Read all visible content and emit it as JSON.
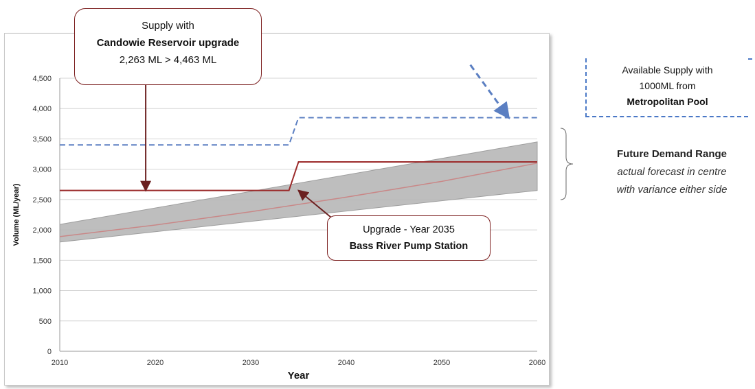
{
  "chart_data": {
    "type": "line",
    "xlabel": "Year",
    "ylabel": "Volume (ML/year)",
    "xlim": [
      2010,
      2060
    ],
    "ylim": [
      0,
      4500
    ],
    "x_ticks": [
      "2010",
      "2020",
      "2030",
      "2040",
      "2050",
      "2060"
    ],
    "y_ticks": [
      "0",
      "500",
      "1,000",
      "1,500",
      "2,000",
      "2,500",
      "3,000",
      "3,500",
      "4,000",
      "4,500"
    ],
    "x_tick_values": [
      2010,
      2020,
      2030,
      2040,
      2050,
      2060
    ],
    "y_tick_values": [
      0,
      500,
      1000,
      1500,
      2000,
      2500,
      3000,
      3500,
      4000,
      4500
    ],
    "grid": true,
    "series": [
      {
        "kind": "dashed-step",
        "color": "#5b7fc2",
        "points": [
          [
            2010,
            3400
          ],
          [
            2034,
            3400
          ],
          [
            2035,
            3850
          ],
          [
            2060,
            3850
          ]
        ]
      },
      {
        "kind": "step",
        "color": "#9b2a2a",
        "points": [
          [
            2010,
            2650
          ],
          [
            2034,
            2650
          ],
          [
            2035,
            3120
          ],
          [
            2060,
            3120
          ]
        ]
      },
      {
        "kind": "band",
        "color": "#b7b7b7",
        "x": [
          2010,
          2060
        ],
        "upper": [
          2090,
          3450
        ],
        "lower": [
          1800,
          2650
        ]
      },
      {
        "kind": "centre-line",
        "color": "#c98787",
        "x": [
          2010,
          2020,
          2030,
          2040,
          2050,
          2060
        ],
        "values": [
          1890,
          2080,
          2300,
          2540,
          2800,
          3100
        ]
      }
    ],
    "arrows": [
      {
        "from": [
          2019,
          4510
        ],
        "to": [
          2019,
          2650
        ],
        "color": "#6b1f1f"
      },
      {
        "from": [
          2040,
          2000
        ],
        "to": [
          2035,
          2650
        ],
        "color": "#6b1f1f"
      },
      {
        "from": [
          2053,
          4720
        ],
        "to": [
          2057,
          3850
        ],
        "color": "#5b7fc2",
        "dashed": true
      }
    ]
  },
  "callouts": {
    "reservoir": {
      "line1": "Supply with",
      "line2": "Candowie Reservoir upgrade",
      "line3": "2,263 ML > 4,463 ML"
    },
    "pump": {
      "line1": "Upgrade - Year 2035",
      "line2": "Bass River Pump Station"
    },
    "metro": {
      "line1": "Available Supply with",
      "line2": "1000ML from",
      "line3": "Metropolitan Pool"
    },
    "demand": {
      "title": "Future Demand Range",
      "line1": "actual forecast in centre",
      "line2": "with variance either side"
    }
  },
  "colors": {
    "supply_current": "#9b2a2a",
    "supply_metro": "#5b7fc2",
    "demand_band": "#b7b7b7"
  }
}
